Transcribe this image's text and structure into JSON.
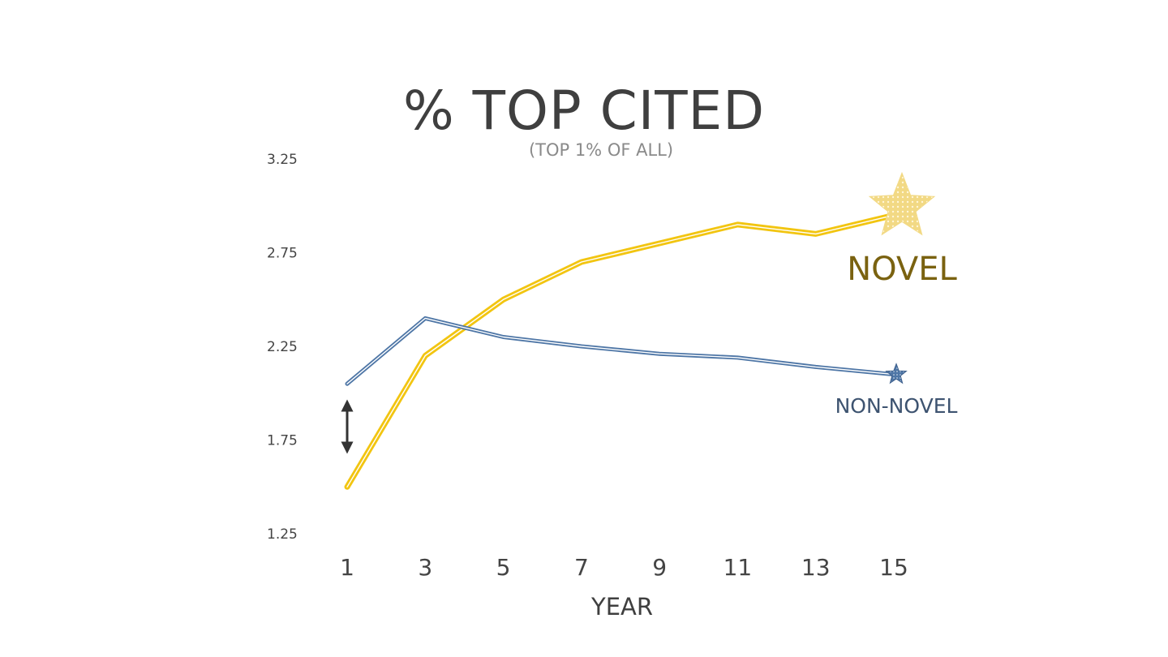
{
  "chart_data": {
    "type": "line",
    "title": "% TOP CITED",
    "subtitle": "(TOP 1% OF ALL)",
    "xlabel": "YEAR",
    "ylabel": "",
    "x": [
      1,
      3,
      5,
      7,
      9,
      11,
      13,
      15
    ],
    "ylim": [
      1.25,
      3.25
    ],
    "y_ticks": [
      "3.25",
      "2.75",
      "2.25",
      "1.75",
      "1.25"
    ],
    "x_ticks": [
      "1",
      "3",
      "5",
      "7",
      "9",
      "11",
      "13",
      "15"
    ],
    "grid": false,
    "series": [
      {
        "name": "NOVEL",
        "color": "#f2c511",
        "label_color": "#7a6210",
        "marker": "star-large",
        "values": [
          1.5,
          2.2,
          2.5,
          2.7,
          2.8,
          2.9,
          2.85,
          2.95
        ]
      },
      {
        "name": "NON-NOVEL",
        "color": "#4e76a6",
        "label_color": "#3d5370",
        "marker": "star-small",
        "values": [
          2.05,
          2.4,
          2.3,
          2.25,
          2.21,
          2.19,
          2.14,
          2.1
        ]
      }
    ],
    "annotation": "double-arrow-icon"
  }
}
